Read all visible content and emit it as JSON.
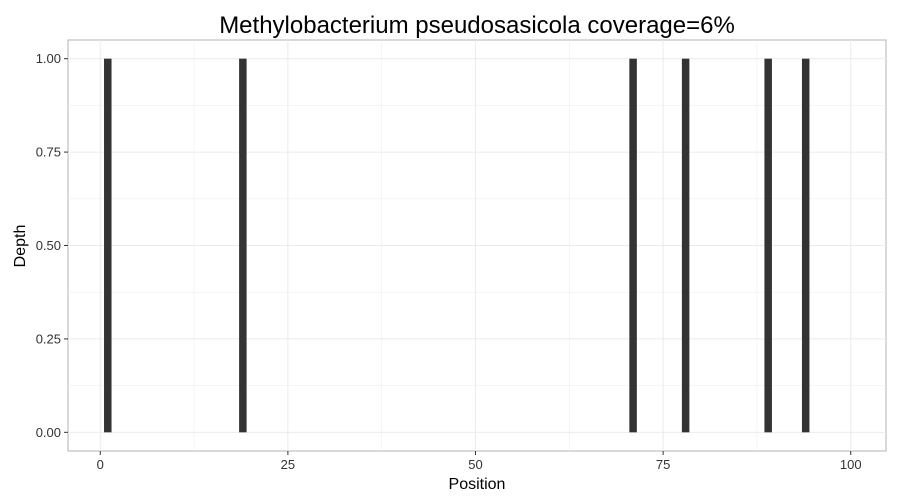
{
  "chart_data": {
    "type": "bar",
    "title": "Methylobacterium pseudosasicola coverage=6%",
    "xlabel": "Position",
    "ylabel": "Depth",
    "xlim": [
      -4.3,
      104.7
    ],
    "ylim": [
      -0.05,
      1.05
    ],
    "x_ticks": [
      0,
      25,
      50,
      75,
      100
    ],
    "x_tick_labels": [
      "0",
      "25",
      "50",
      "75",
      "100"
    ],
    "y_ticks": [
      0,
      0.25,
      0.5,
      0.75,
      1.0
    ],
    "y_tick_labels": [
      "0.00",
      "0.25",
      "0.50",
      "0.75",
      "1.00"
    ],
    "grid": true,
    "bar_color": "#333333",
    "panel_background": "#ffffff",
    "grid_color": "#ebebeb",
    "x": [
      1,
      19,
      71,
      78,
      89,
      94
    ],
    "values": [
      1,
      1,
      1,
      1,
      1,
      1
    ]
  }
}
